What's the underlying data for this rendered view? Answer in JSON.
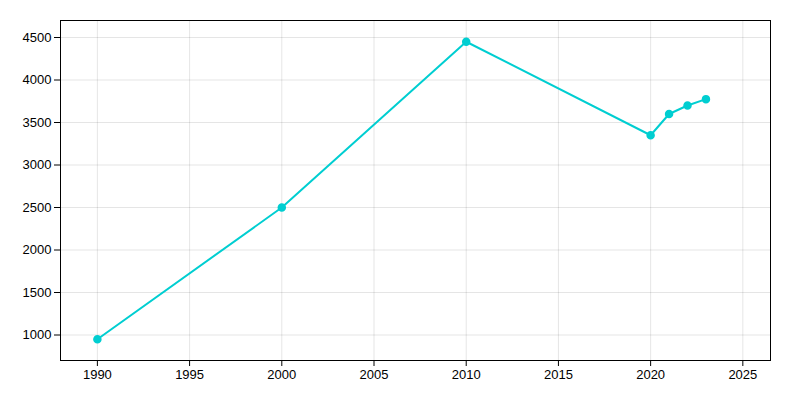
{
  "chart_data": {
    "type": "line",
    "x": [
      1990,
      2000,
      2010,
      2020,
      2021,
      2022,
      2023
    ],
    "values": [
      950,
      2500,
      4450,
      3350,
      3600,
      3700,
      3775
    ],
    "color": "#00CED1",
    "marker": "circle",
    "xlim": [
      1988,
      2026.5
    ],
    "ylim": [
      700,
      4700
    ],
    "xticks": [
      1990,
      1995,
      2000,
      2005,
      2010,
      2015,
      2020,
      2025
    ],
    "yticks": [
      1000,
      1500,
      2000,
      2500,
      3000,
      3500,
      4000,
      4500
    ],
    "grid": true
  }
}
